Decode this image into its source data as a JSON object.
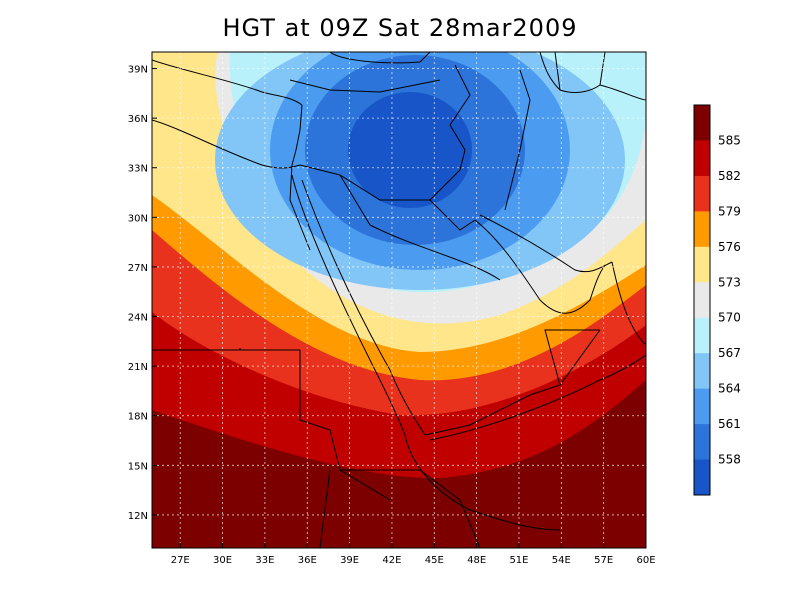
{
  "title": "HGT at 09Z Sat 28mar2009",
  "map": {
    "lon_range": [
      25,
      60
    ],
    "lat_range": [
      10,
      40
    ],
    "lon_ticks": [
      "27E",
      "30E",
      "33E",
      "36E",
      "39E",
      "42E",
      "45E",
      "48E",
      "51E",
      "54E",
      "57E",
      "60E"
    ],
    "lat_ticks": [
      "12N",
      "15N",
      "18N",
      "21N",
      "24N",
      "27N",
      "30N",
      "33N",
      "36N",
      "39N"
    ],
    "grid": true,
    "low_center": {
      "lon": 44,
      "lat": 34
    }
  },
  "colorbar": {
    "labels": [
      "585",
      "582",
      "579",
      "576",
      "573",
      "570",
      "567",
      "564",
      "561",
      "558"
    ],
    "colors": [
      "#7d0000",
      "#c00000",
      "#e8321e",
      "#ff9a00",
      "#ffe68a",
      "#e9e9e9",
      "#b9f1fa",
      "#82c6f8",
      "#4b9cf0",
      "#2d74da",
      "#1755c8"
    ]
  }
}
